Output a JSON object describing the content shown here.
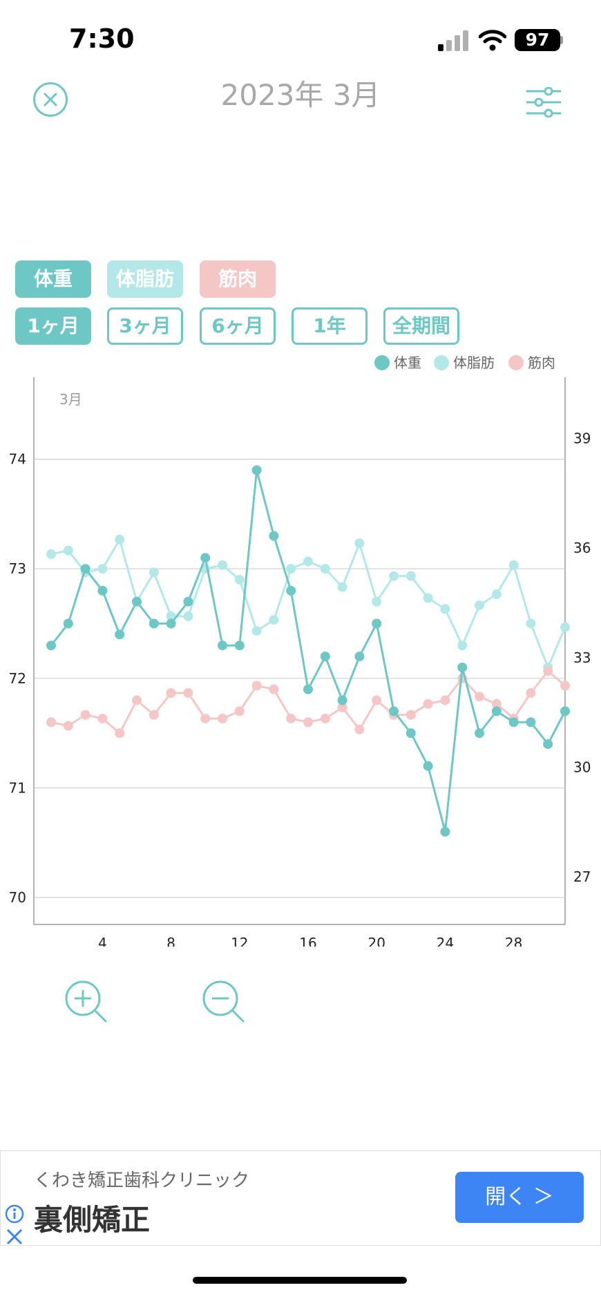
{
  "status_bar": {
    "time": "7:30",
    "battery": "97"
  },
  "header": {
    "title": "2023年 3月",
    "close_icon": "close-circle-icon",
    "filter_icon": "sliders-icon"
  },
  "chips": {
    "weight": "体重",
    "fat": "体脂肪",
    "muscle": "筋肉"
  },
  "ranges": [
    "1ヶ月",
    "3ヶ月",
    "6ヶ月",
    "1年",
    "全期間"
  ],
  "legend": [
    {
      "label": "体重",
      "color": "#6cc7c5"
    },
    {
      "label": "体脂肪",
      "color": "#b4e8e8"
    },
    {
      "label": "筋肉",
      "color": "#f4c7c6"
    }
  ],
  "chart_data": {
    "type": "line",
    "month_label": "3月",
    "x": [
      1,
      2,
      3,
      4,
      5,
      6,
      7,
      8,
      9,
      10,
      11,
      12,
      13,
      14,
      15,
      16,
      17,
      18,
      19,
      20,
      21,
      22,
      23,
      24,
      25,
      26,
      27,
      28,
      29,
      30,
      31
    ],
    "x_ticks": [
      4,
      8,
      12,
      16,
      20,
      24,
      28
    ],
    "left_axis": {
      "ticks": [
        70,
        71,
        72,
        73,
        74
      ]
    },
    "right_axis": {
      "ticks": [
        27,
        30,
        33,
        36,
        39
      ]
    },
    "series": [
      {
        "name": "体重",
        "axis": "left",
        "color": "#6cc7c5",
        "values": [
          72.3,
          72.5,
          73.0,
          72.8,
          72.4,
          72.7,
          72.5,
          72.5,
          72.7,
          73.1,
          72.3,
          72.3,
          73.9,
          73.3,
          72.8,
          71.9,
          72.2,
          71.8,
          72.2,
          72.5,
          71.7,
          71.5,
          71.2,
          70.6,
          72.1,
          71.5,
          71.7,
          71.6,
          71.6,
          71.4,
          71.7
        ]
      },
      {
        "name": "体脂肪",
        "axis": "right",
        "color": "#b4e8e8",
        "values": [
          36.4,
          36.5,
          35.9,
          36.0,
          36.8,
          35.1,
          35.9,
          34.7,
          34.7,
          36.0,
          36.1,
          35.7,
          34.3,
          34.6,
          36.0,
          36.2,
          36.0,
          35.5,
          36.7,
          35.1,
          35.8,
          35.8,
          35.2,
          34.9,
          33.9,
          35.0,
          35.3,
          36.1,
          34.5,
          33.3,
          34.4
        ]
      },
      {
        "name": "筋肉",
        "axis": "right",
        "color": "#f4c7c6",
        "values": [
          31.8,
          31.7,
          32.0,
          31.9,
          31.5,
          32.4,
          32.0,
          32.6,
          32.6,
          31.9,
          31.9,
          32.1,
          32.8,
          32.7,
          31.9,
          31.8,
          31.9,
          32.2,
          31.6,
          32.4,
          32.0,
          32.0,
          32.3,
          32.4,
          33.0,
          32.5,
          32.3,
          31.9,
          32.6,
          33.2,
          32.8
        ]
      }
    ]
  },
  "zoom": {
    "in_icon": "zoom-in-icon",
    "out_icon": "zoom-out-icon"
  },
  "ad": {
    "advertiser": "くわき矯正歯科クリニック",
    "headline": "裏側矯正",
    "button": "開く ＞"
  }
}
